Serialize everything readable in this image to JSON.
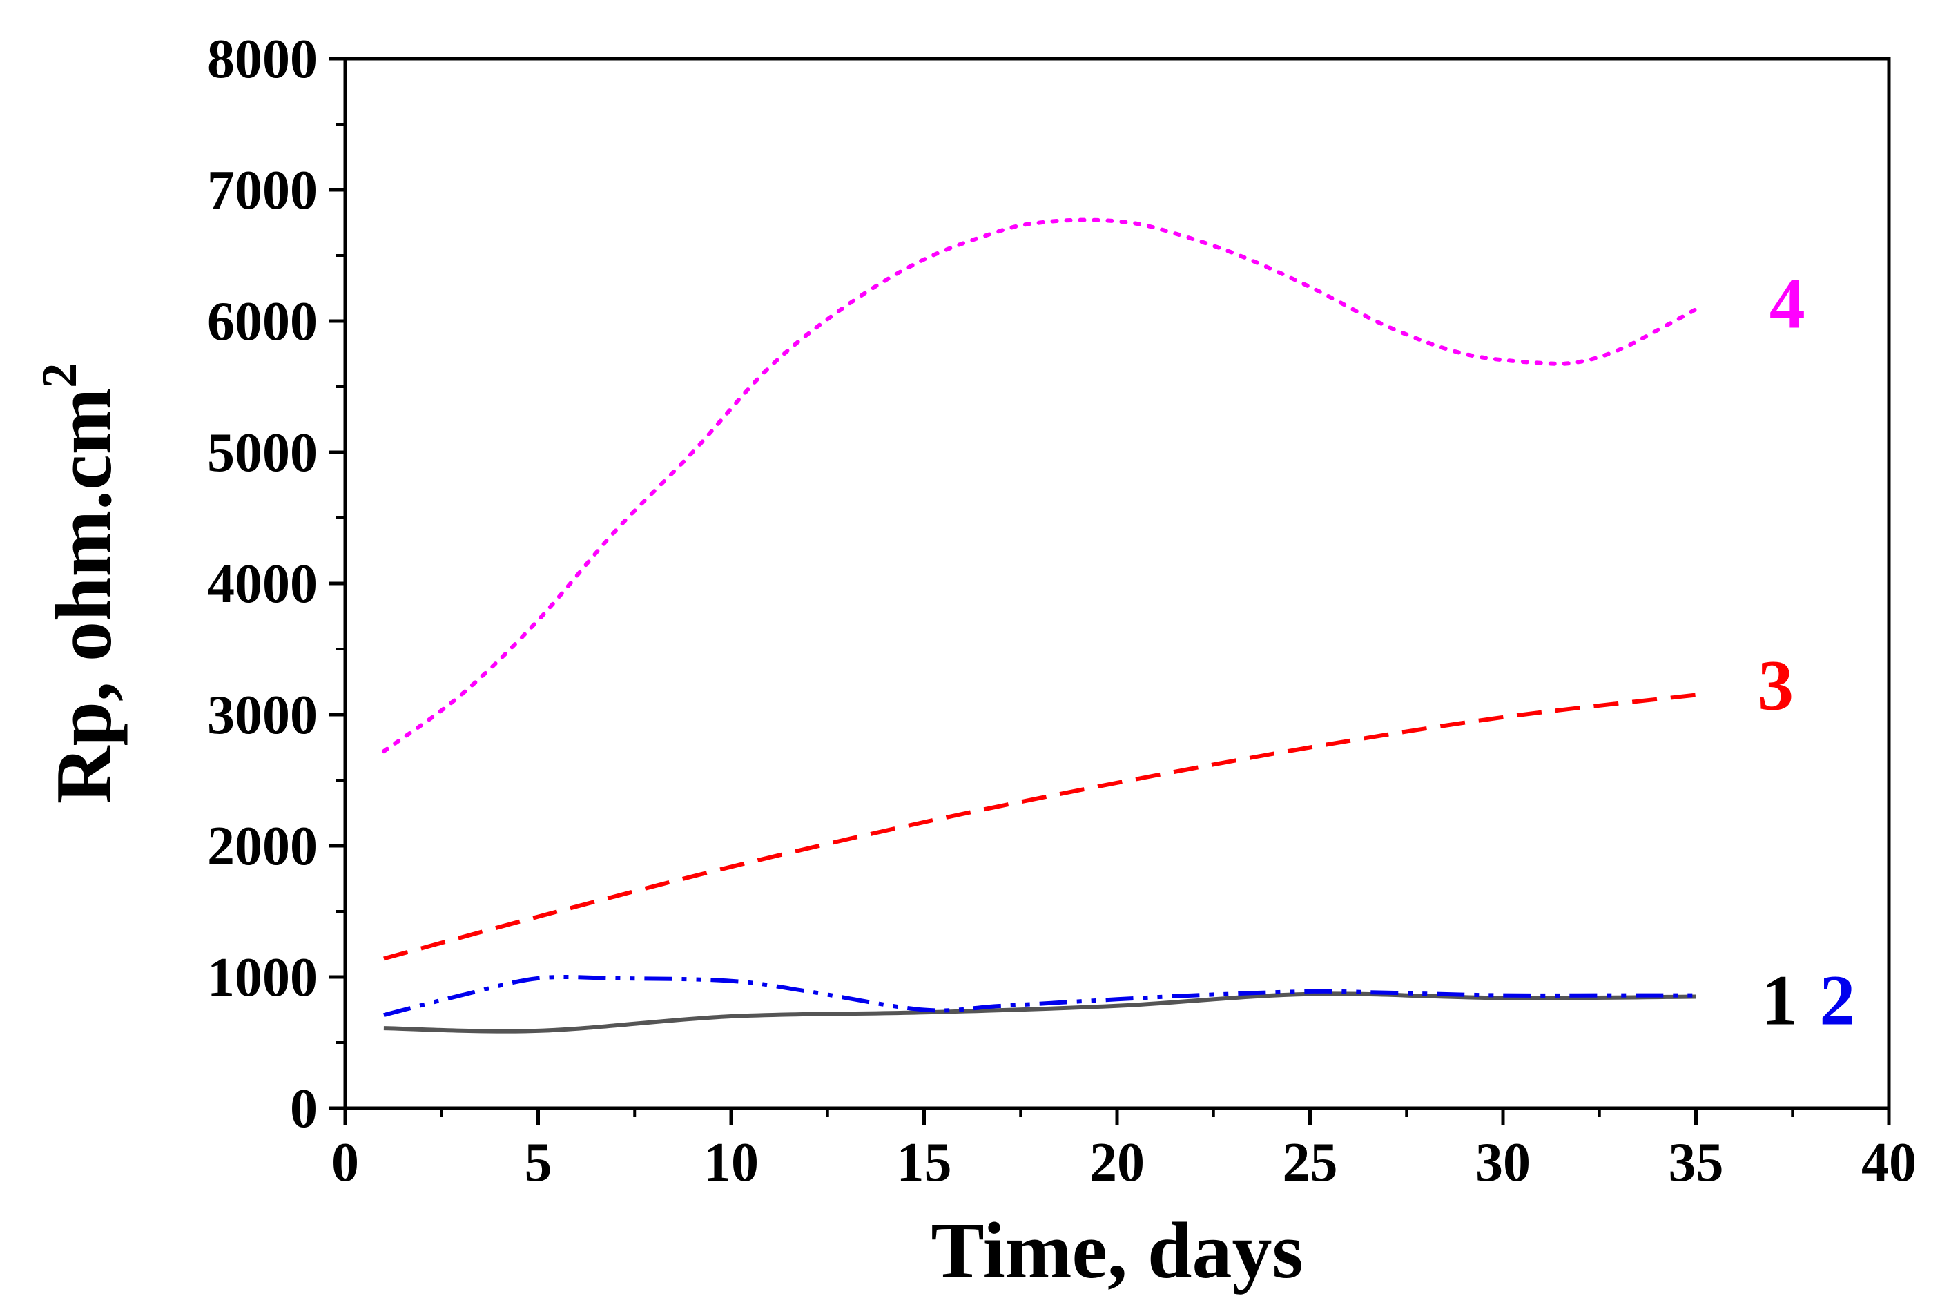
{
  "chart_data": {
    "type": "line",
    "title": "",
    "xlabel": "Time, days",
    "ylabel_main": "Rp, ohm.cm",
    "ylabel_sup": "2",
    "xlim": [
      0,
      40
    ],
    "ylim": [
      0,
      8000
    ],
    "xticks": [
      0,
      5,
      10,
      15,
      20,
      25,
      30,
      35,
      40
    ],
    "yticks": [
      0,
      1000,
      2000,
      3000,
      4000,
      5000,
      6000,
      7000,
      8000
    ],
    "grid": false,
    "series": [
      {
        "name": "1",
        "color": "#555555",
        "style": "solid",
        "x": [
          1,
          5,
          10,
          15,
          20,
          25,
          30,
          35
        ],
        "y": [
          610,
          590,
          700,
          730,
          780,
          870,
          840,
          850
        ]
      },
      {
        "name": "2",
        "color": "#0000ee",
        "style": "dashdotdot",
        "x": [
          1,
          3,
          5,
          7,
          10,
          12,
          15,
          17,
          20,
          22,
          25,
          27,
          30,
          33,
          35
        ],
        "y": [
          710,
          860,
          990,
          990,
          970,
          890,
          750,
          780,
          830,
          860,
          890,
          880,
          860,
          860,
          860
        ]
      },
      {
        "name": "3",
        "color": "#ff0000",
        "style": "dashed",
        "x": [
          1,
          5,
          10,
          15,
          20,
          25,
          30,
          35
        ],
        "y": [
          1140,
          1460,
          1840,
          2180,
          2480,
          2750,
          2980,
          3150
        ]
      },
      {
        "name": "4",
        "color": "#ff00ff",
        "style": "dotted",
        "x": [
          1,
          3,
          5,
          7,
          9,
          11,
          13,
          15,
          17,
          18,
          19,
          20,
          21,
          23,
          25,
          27,
          29,
          31,
          32,
          33,
          34,
          35
        ],
        "y": [
          2720,
          3150,
          3720,
          4400,
          5000,
          5650,
          6120,
          6470,
          6690,
          6750,
          6770,
          6760,
          6710,
          6520,
          6260,
          5960,
          5750,
          5680,
          5690,
          5780,
          5930,
          6090
        ]
      }
    ],
    "curve_labels": [
      {
        "text": "1",
        "x": 36.7,
        "y": 830,
        "color": "#000000"
      },
      {
        "text": "2",
        "x": 38.2,
        "y": 830,
        "color": "#0000ee"
      },
      {
        "text": "3",
        "x": 36.6,
        "y": 3230,
        "color": "#ff0000"
      },
      {
        "text": "4",
        "x": 36.9,
        "y": 6140,
        "color": "#ff00ff"
      }
    ]
  }
}
